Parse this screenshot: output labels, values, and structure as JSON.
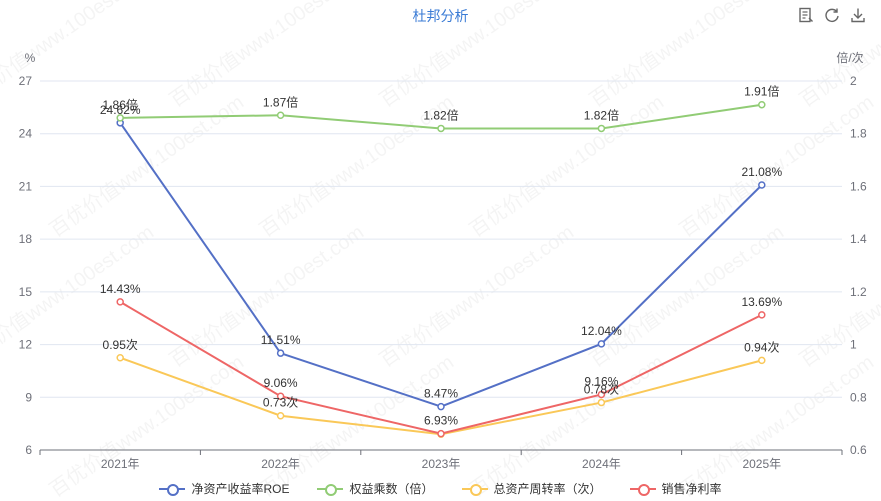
{
  "title": "杜邦分析",
  "toolbox": {
    "icons": [
      "data-view-icon",
      "refresh-icon",
      "download-icon"
    ]
  },
  "watermark_text": "百优价值www.100est.com",
  "chart_data": {
    "type": "line",
    "title": "杜邦分析",
    "x": [
      "2021年",
      "2022年",
      "2023年",
      "2024年",
      "2025年"
    ],
    "y_left": {
      "unit": "%",
      "min": 6,
      "max": 27,
      "ticks": [
        6,
        9,
        12,
        15,
        18,
        21,
        24,
        27
      ]
    },
    "y_right": {
      "unit": "倍/次",
      "min": 0.6,
      "max": 2,
      "ticks": [
        "0.6",
        "0.8",
        "1",
        "1.2",
        "1.4",
        "1.6",
        "1.8",
        "2"
      ]
    },
    "grid": true,
    "legend_position": "bottom",
    "series": [
      {
        "name": "净资产收益率ROE",
        "axis": "left",
        "color": "#5470c6",
        "values": [
          24.62,
          11.51,
          8.47,
          12.04,
          21.08
        ],
        "labels": [
          "24.62%",
          "11.51%",
          "8.47%",
          "12.04%",
          "21.08%"
        ]
      },
      {
        "name": "权益乘数（倍）",
        "axis": "right",
        "color": "#91cc75",
        "values": [
          1.86,
          1.87,
          1.82,
          1.82,
          1.91
        ],
        "labels": [
          "1.86倍",
          "1.87倍",
          "1.82倍",
          "1.82倍",
          "1.91倍"
        ]
      },
      {
        "name": "总资产周转率（次）",
        "axis": "right",
        "color": "#fac858",
        "values": [
          0.95,
          0.73,
          0.66,
          0.78,
          0.94
        ],
        "labels": [
          "0.95次",
          "0.73次",
          "",
          "0.78次",
          "0.94次"
        ]
      },
      {
        "name": "销售净利率",
        "axis": "left",
        "color": "#ee6666",
        "values": [
          14.43,
          9.06,
          6.93,
          9.16,
          13.69
        ],
        "labels": [
          "14.43%",
          "9.06%",
          "6.93%",
          "9.16%",
          "13.69%"
        ]
      }
    ]
  }
}
